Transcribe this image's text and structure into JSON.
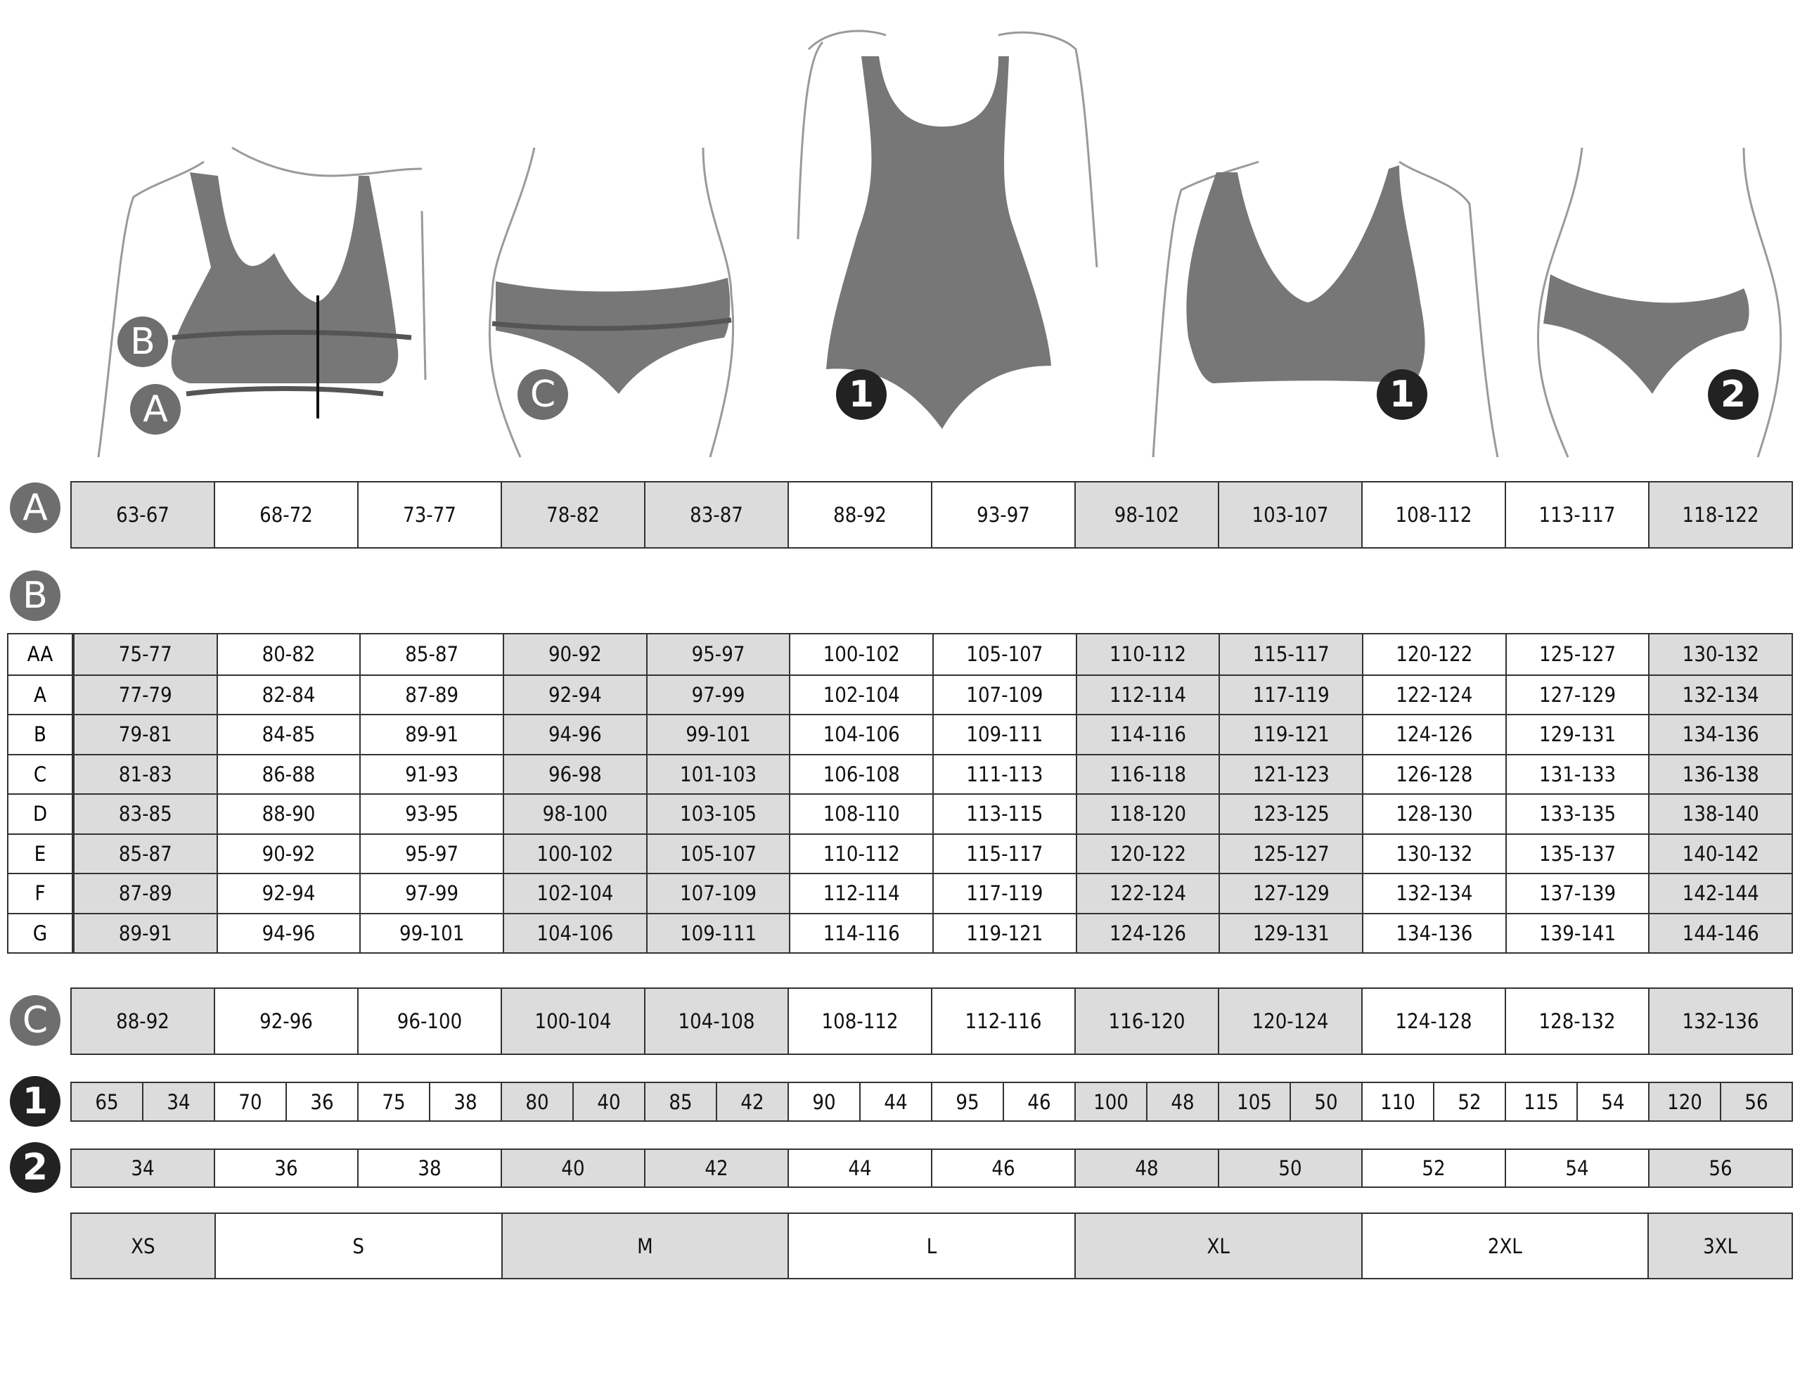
{
  "colors": {
    "shade": "#dcdcdc",
    "garment": "#777777",
    "badge_grey": "#6e6e6e",
    "badge_black": "#222222"
  },
  "figure_badges": {
    "b": "B",
    "a": "A",
    "c": "C",
    "one_body": "1",
    "one_bra": "1",
    "two": "2"
  },
  "shaded_columns": [
    0,
    3,
    4,
    7,
    8,
    11
  ],
  "section_badges": {
    "a": "A",
    "b": "B",
    "c": "C",
    "one": "1",
    "two": "2"
  },
  "row_a": [
    "63-67",
    "68-72",
    "73-77",
    "78-82",
    "83-87",
    "88-92",
    "93-97",
    "98-102",
    "103-107",
    "108-112",
    "113-117",
    "118-122"
  ],
  "table_b": [
    {
      "cup": "AA",
      "values": [
        "75-77",
        "80-82",
        "85-87",
        "90-92",
        "95-97",
        "100-102",
        "105-107",
        "110-112",
        "115-117",
        "120-122",
        "125-127",
        "130-132"
      ]
    },
    {
      "cup": "A",
      "values": [
        "77-79",
        "82-84",
        "87-89",
        "92-94",
        "97-99",
        "102-104",
        "107-109",
        "112-114",
        "117-119",
        "122-124",
        "127-129",
        "132-134"
      ]
    },
    {
      "cup": "B",
      "values": [
        "79-81",
        "84-85",
        "89-91",
        "94-96",
        "99-101",
        "104-106",
        "109-111",
        "114-116",
        "119-121",
        "124-126",
        "129-131",
        "134-136"
      ]
    },
    {
      "cup": "C",
      "values": [
        "81-83",
        "86-88",
        "91-93",
        "96-98",
        "101-103",
        "106-108",
        "111-113",
        "116-118",
        "121-123",
        "126-128",
        "131-133",
        "136-138"
      ]
    },
    {
      "cup": "D",
      "values": [
        "83-85",
        "88-90",
        "93-95",
        "98-100",
        "103-105",
        "108-110",
        "113-115",
        "118-120",
        "123-125",
        "128-130",
        "133-135",
        "138-140"
      ]
    },
    {
      "cup": "E",
      "values": [
        "85-87",
        "90-92",
        "95-97",
        "100-102",
        "105-107",
        "110-112",
        "115-117",
        "120-122",
        "125-127",
        "130-132",
        "135-137",
        "140-142"
      ]
    },
    {
      "cup": "F",
      "values": [
        "87-89",
        "92-94",
        "97-99",
        "102-104",
        "107-109",
        "112-114",
        "117-119",
        "122-124",
        "127-129",
        "132-134",
        "137-139",
        "142-144"
      ]
    },
    {
      "cup": "G",
      "values": [
        "89-91",
        "94-96",
        "99-101",
        "104-106",
        "109-111",
        "114-116",
        "119-121",
        "124-126",
        "129-131",
        "134-136",
        "139-141",
        "144-146"
      ]
    }
  ],
  "row_c": [
    "88-92",
    "92-96",
    "96-100",
    "100-104",
    "104-108",
    "108-112",
    "112-116",
    "116-120",
    "120-124",
    "124-128",
    "128-132",
    "132-136"
  ],
  "row_1": [
    [
      "65",
      "34"
    ],
    [
      "70",
      "36"
    ],
    [
      "75",
      "38"
    ],
    [
      "80",
      "40"
    ],
    [
      "85",
      "42"
    ],
    [
      "90",
      "44"
    ],
    [
      "95",
      "46"
    ],
    [
      "100",
      "48"
    ],
    [
      "105",
      "50"
    ],
    [
      "110",
      "52"
    ],
    [
      "115",
      "54"
    ],
    [
      "120",
      "56"
    ]
  ],
  "row_2": [
    "34",
    "36",
    "38",
    "40",
    "42",
    "44",
    "46",
    "48",
    "50",
    "52",
    "54",
    "56"
  ],
  "sizes": [
    {
      "label": "XS",
      "span": 1,
      "shaded": true
    },
    {
      "label": "S",
      "span": 2,
      "shaded": false
    },
    {
      "label": "M",
      "span": 2,
      "shaded": true
    },
    {
      "label": "L",
      "span": 2,
      "shaded": false
    },
    {
      "label": "XL",
      "span": 2,
      "shaded": true
    },
    {
      "label": "2XL",
      "span": 2,
      "shaded": false
    },
    {
      "label": "3XL",
      "span": 1,
      "shaded": true
    }
  ]
}
